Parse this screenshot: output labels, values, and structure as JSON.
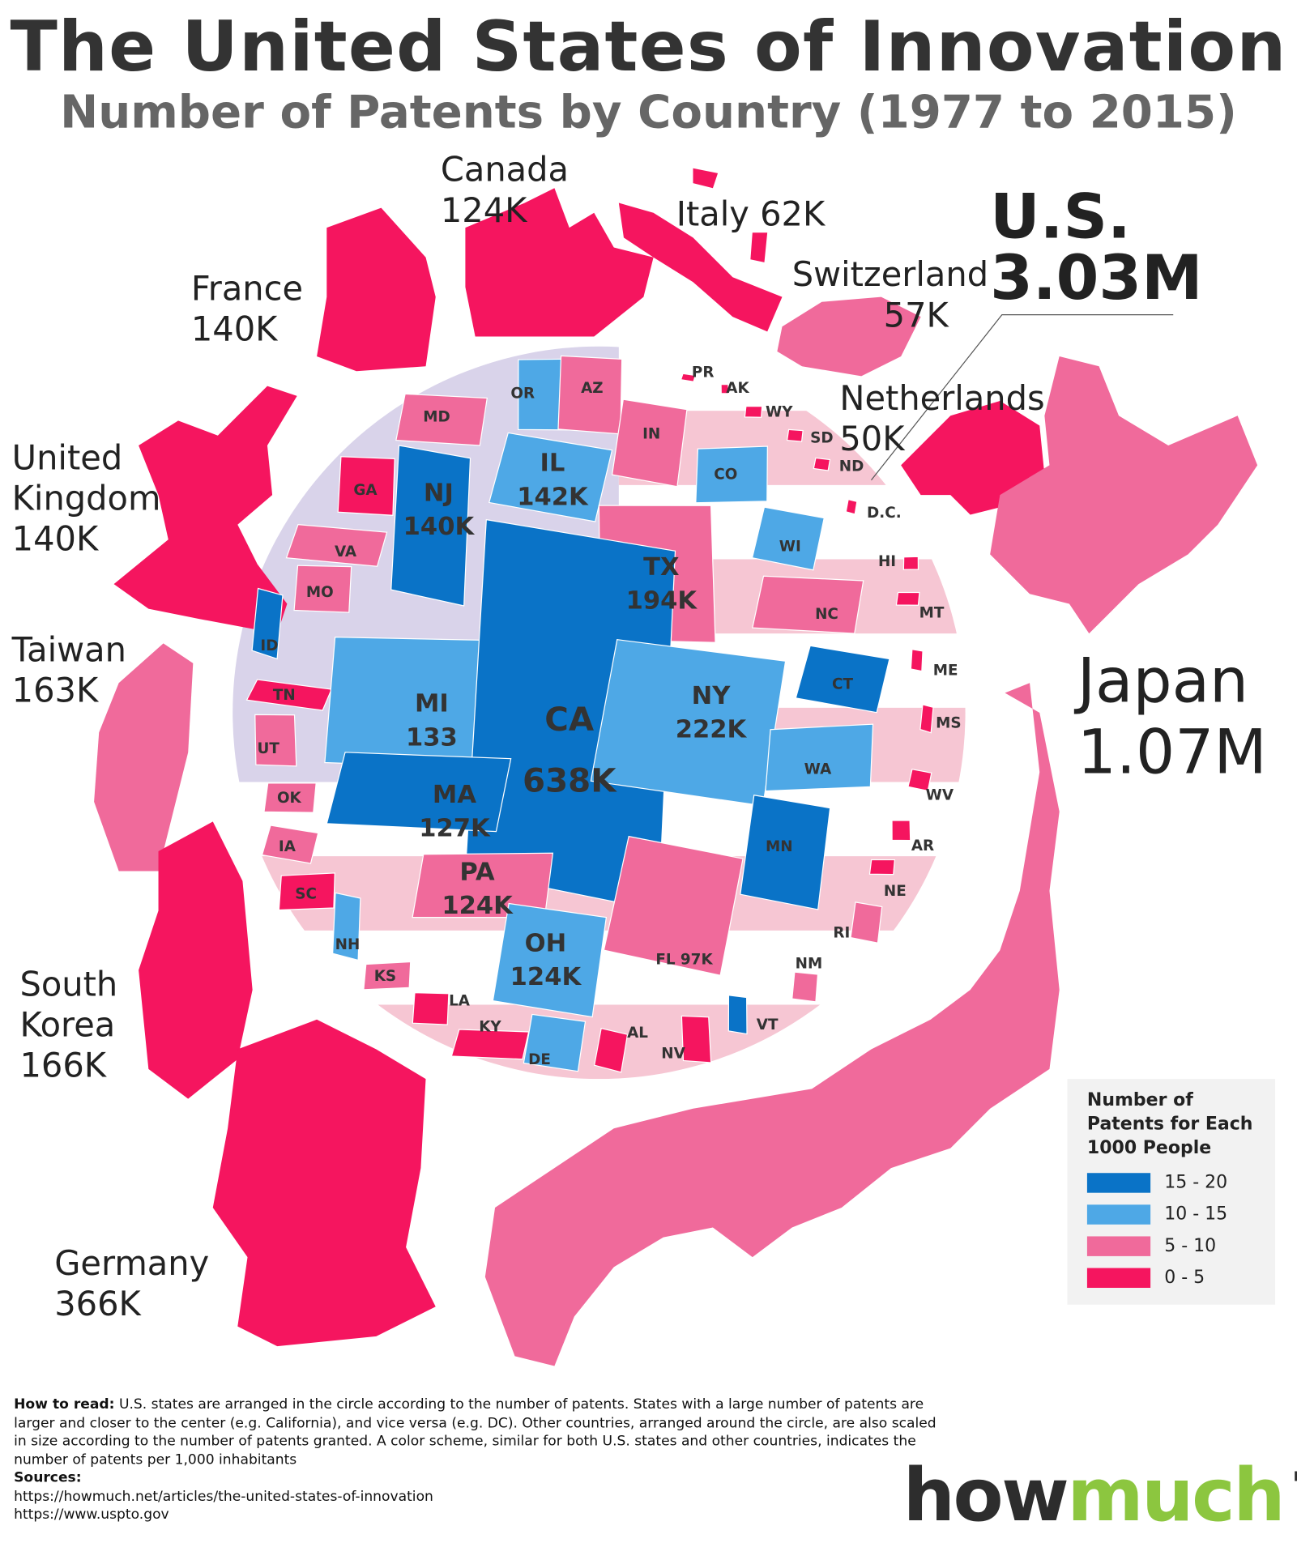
{
  "header": {
    "title": "The United States of Innovation",
    "subtitle": "Number of Patents by Country (1977 to 2015)"
  },
  "us_total": {
    "name": "U.S.",
    "value": "3.03M"
  },
  "countries": [
    {
      "name": "Canada",
      "value": "124K",
      "color": "#f5155f"
    },
    {
      "name": "Italy",
      "value": "62K",
      "color": "#f5155f"
    },
    {
      "name": "Switzerland",
      "value": "57K",
      "color": "#f06a9b"
    },
    {
      "name": "Netherlands",
      "value": "50K",
      "color": "#f5155f"
    },
    {
      "name": "France",
      "value": "140K",
      "color": "#f5155f"
    },
    {
      "name": "United Kingdom",
      "value": "140K",
      "color": "#f5155f"
    },
    {
      "name": "Taiwan",
      "value": "163K",
      "color": "#f06a9b"
    },
    {
      "name": "South Korea",
      "value": "166K",
      "color": "#f5155f"
    },
    {
      "name": "Germany",
      "value": "366K",
      "color": "#f5155f"
    },
    {
      "name": "Japan",
      "value": "1.07M",
      "color": "#f06a9b"
    }
  ],
  "states": [
    {
      "label": "OR",
      "color": "#4ea8e6"
    },
    {
      "label": "AZ",
      "color": "#f06a9b"
    },
    {
      "label": "MD",
      "color": "#f06a9b"
    },
    {
      "label": "IN",
      "color": "#f06a9b"
    },
    {
      "label": "IL",
      "value": "142K",
      "color": "#4ea8e6"
    },
    {
      "label": "CO",
      "color": "#4ea8e6"
    },
    {
      "label": "GA",
      "color": "#f5155f"
    },
    {
      "label": "NJ",
      "value": "140K",
      "color": "#0a73c7"
    },
    {
      "label": "VA",
      "color": "#f06a9b"
    },
    {
      "label": "WI",
      "color": "#4ea8e6"
    },
    {
      "label": "TX",
      "value": "194K",
      "color": "#f06a9b"
    },
    {
      "label": "MO",
      "color": "#f06a9b"
    },
    {
      "label": "NC",
      "color": "#f06a9b"
    },
    {
      "label": "ID",
      "color": "#0a73c7"
    },
    {
      "label": "TN",
      "color": "#f5155f"
    },
    {
      "label": "UT",
      "color": "#f06a9b"
    },
    {
      "label": "MI",
      "value": "133",
      "color": "#4ea8e6"
    },
    {
      "label": "CA",
      "value": "638K",
      "color": "#0a73c7"
    },
    {
      "label": "NY",
      "value": "222K",
      "color": "#4ea8e6"
    },
    {
      "label": "CT",
      "color": "#0a73c7"
    },
    {
      "label": "WA",
      "color": "#4ea8e6"
    },
    {
      "label": "OK",
      "color": "#f06a9b"
    },
    {
      "label": "MA",
      "value": "127K",
      "color": "#0a73c7"
    },
    {
      "label": "MN",
      "color": "#0a73c7"
    },
    {
      "label": "IA",
      "color": "#f06a9b"
    },
    {
      "label": "SC",
      "color": "#f5155f"
    },
    {
      "label": "PA",
      "value": "124K",
      "color": "#f06a9b"
    },
    {
      "label": "NH",
      "color": "#4ea8e6"
    },
    {
      "label": "OH",
      "value": "124K",
      "color": "#4ea8e6"
    },
    {
      "label": "FL 97K",
      "color": "#f06a9b"
    },
    {
      "label": "KS",
      "color": "#f06a9b"
    },
    {
      "label": "LA",
      "color": "#f5155f"
    },
    {
      "label": "KY",
      "color": "#f5155f"
    },
    {
      "label": "DE",
      "color": "#4ea8e6"
    },
    {
      "label": "AL",
      "color": "#f5155f"
    },
    {
      "label": "NV",
      "color": "#f5155f"
    },
    {
      "label": "VT",
      "color": "#0a73c7"
    },
    {
      "label": "NM",
      "color": "#f06a9b"
    },
    {
      "label": "RI",
      "color": "#f06a9b"
    },
    {
      "label": "PR",
      "color": "#f5155f"
    },
    {
      "label": "AK",
      "color": "#f5155f"
    },
    {
      "label": "WY",
      "color": "#f5155f"
    },
    {
      "label": "SD",
      "color": "#f5155f"
    },
    {
      "label": "ND",
      "color": "#f5155f"
    },
    {
      "label": "D.C.",
      "color": "#f5155f"
    },
    {
      "label": "HI",
      "color": "#f5155f"
    },
    {
      "label": "MT",
      "color": "#f5155f"
    },
    {
      "label": "ME",
      "color": "#f5155f"
    },
    {
      "label": "MS",
      "color": "#f5155f"
    },
    {
      "label": "WV",
      "color": "#f5155f"
    },
    {
      "label": "AR",
      "color": "#f5155f"
    },
    {
      "label": "NE",
      "color": "#f5155f"
    }
  ],
  "legend": {
    "title": "Number of Patents for Each 1000 People",
    "items": [
      {
        "label": "15 - 20",
        "color": "#0a73c7"
      },
      {
        "label": "10 - 15",
        "color": "#4ea8e6"
      },
      {
        "label": "5 - 10",
        "color": "#f06a9b"
      },
      {
        "label": "0 - 5",
        "color": "#f5155f"
      }
    ]
  },
  "footer": {
    "how_to_read_label": "How to read:",
    "how_to_read": "U.S. states are arranged in the circle according to the number of patents. States with a large number of patents are larger and closer to the center (e.g. California), and vice versa (e.g. DC). Other countries, arranged around the circle, are also scaled in size according to the number of patents granted. A color scheme, similar for both U.S. states and other countries, indicates the number of patents per 1,000 inhabitants",
    "sources_label": "Sources:",
    "sources": [
      "https://howmuch.net/articles/the-united-states-of-innovation",
      "https://www.uspto.gov"
    ]
  },
  "logo": {
    "how": "how",
    "much": "much",
    "suffix": "net"
  }
}
